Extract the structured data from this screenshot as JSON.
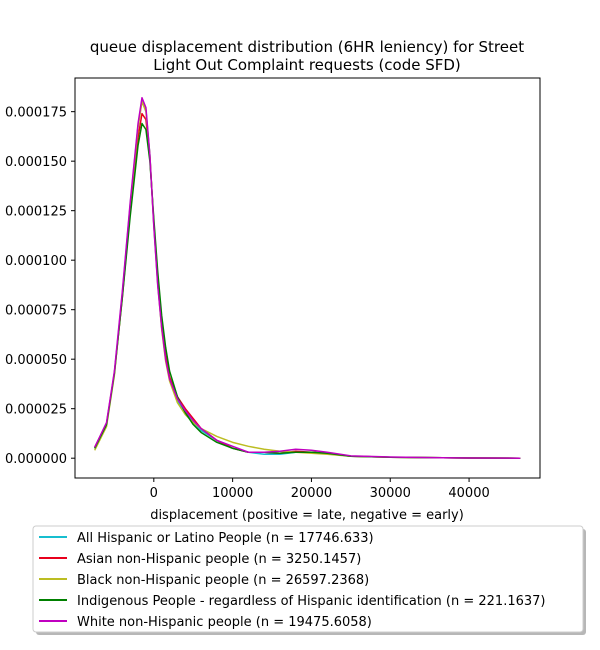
{
  "chart_data": {
    "type": "line",
    "title_lines": [
      "queue displacement distribution (6HR leniency) for Street",
      "Light Out Complaint  requests (code SFD)"
    ],
    "xlabel": "displacement (positive = late, negative = early)",
    "ylabel": "",
    "xlim": [
      -10000,
      49000
    ],
    "ylim": [
      -1e-05,
      0.000192
    ],
    "xticks": [
      0,
      10000,
      20000,
      30000,
      40000
    ],
    "xtick_labels": [
      "0",
      "10000",
      "20000",
      "30000",
      "40000"
    ],
    "yticks": [
      0,
      2.5e-05,
      5e-05,
      7.5e-05,
      0.0001,
      0.000125,
      0.00015,
      0.000175
    ],
    "ytick_labels": [
      "0.000000",
      "0.000025",
      "0.000050",
      "0.000075",
      "0.000100",
      "0.000125",
      "0.000150",
      "0.000175"
    ],
    "grid": false,
    "legend_position": "below plot",
    "x": [
      -7500,
      -6000,
      -5000,
      -4000,
      -3000,
      -2000,
      -1500,
      -1000,
      -500,
      0,
      500,
      1000,
      1500,
      2000,
      3000,
      4000,
      5000,
      6000,
      8000,
      10000,
      12000,
      14000,
      16000,
      18000,
      20000,
      22000,
      25000,
      30000,
      35000,
      40000,
      46500
    ],
    "series": [
      {
        "name": "All Hispanic or Latino People (n = 17746.633)",
        "color": "#17becf",
        "values": [
          5e-06,
          1.7e-05,
          4.3e-05,
          8.3e-05,
          0.000128,
          0.000168,
          0.000181,
          0.000176,
          0.000153,
          0.000118,
          8.8e-05,
          6.6e-05,
          5e-05,
          4e-05,
          2.9e-05,
          2.3e-05,
          1.8e-05,
          1.4e-05,
          9e-06,
          5e-06,
          3e-06,
          2e-06,
          2e-06,
          3e-06,
          3e-06,
          2.5e-06,
          1e-06,
          5e-07,
          3e-07,
          1e-07,
          0.0
        ]
      },
      {
        "name": "Asian non-Hispanic people (n = 3250.1457)",
        "color": "#e8001c",
        "values": [
          5.5e-06,
          1.75e-05,
          4.3e-05,
          8.1e-05,
          0.000125,
          0.000162,
          0.000174,
          0.000171,
          0.000152,
          0.000119,
          9e-05,
          6.8e-05,
          5.2e-05,
          4.1e-05,
          3.1e-05,
          2.5e-05,
          2e-05,
          1.5e-05,
          9e-06,
          5e-06,
          3e-06,
          3e-06,
          2.5e-06,
          3.5e-06,
          3e-06,
          2.5e-06,
          1e-06,
          5e-07,
          3e-07,
          1e-07,
          0.0
        ]
      },
      {
        "name": "Black non-Hispanic people (n = 26597.2368)",
        "color": "#bcbd22",
        "values": [
          4e-06,
          1.6e-05,
          4.2e-05,
          8.2e-05,
          0.000127,
          0.000167,
          0.00018,
          0.000175,
          0.000153,
          0.000118,
          8.8e-05,
          6.5e-05,
          4.9e-05,
          3.9e-05,
          2.8e-05,
          2.2e-05,
          1.8e-05,
          1.5e-05,
          1.1e-05,
          8e-06,
          6e-06,
          4.5e-06,
          3.5e-06,
          3e-06,
          2.5e-06,
          2e-06,
          1e-06,
          5e-07,
          3e-07,
          1e-07,
          0.0
        ]
      },
      {
        "name": "Indigenous People - regardless of Hispanic identification (n = 221.1637)",
        "color": "#008000",
        "values": [
          5e-06,
          1.7e-05,
          4.3e-05,
          8.1e-05,
          0.000122,
          0.000158,
          0.000169,
          0.000166,
          0.00015,
          0.000121,
          9.4e-05,
          7.2e-05,
          5.6e-05,
          4.4e-05,
          3.1e-05,
          2.3e-05,
          1.7e-05,
          1.3e-05,
          8e-06,
          5e-06,
          3e-06,
          3e-06,
          2.5e-06,
          3e-06,
          3e-06,
          2.5e-06,
          1e-06,
          5e-07,
          3e-07,
          1e-07,
          0.0
        ]
      },
      {
        "name": "White non-Hispanic people (n = 19475.6058)",
        "color": "#c000c0",
        "values": [
          5.5e-06,
          1.8e-05,
          4.4e-05,
          8.4e-05,
          0.000129,
          0.000169,
          0.000182,
          0.000177,
          0.000153,
          0.000117,
          8.7e-05,
          6.6e-05,
          5e-05,
          4e-05,
          3e-05,
          2.4e-05,
          1.9e-05,
          1.5e-05,
          9e-06,
          6e-06,
          3e-06,
          3e-06,
          3.5e-06,
          4.5e-06,
          4e-06,
          3e-06,
          1.2e-06,
          6e-07,
          3e-07,
          1e-07,
          0.0
        ]
      }
    ]
  }
}
